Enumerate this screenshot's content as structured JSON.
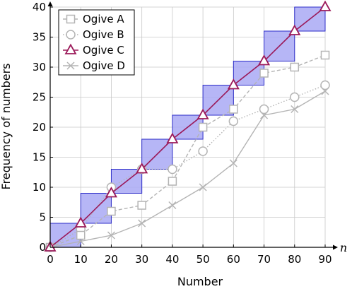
{
  "chart_data": {
    "type": "line",
    "title": "",
    "xlabel": "Number",
    "ylabel": "Frequency of numbers",
    "x_axis_symbol": "n",
    "xlim": [
      0,
      90
    ],
    "ylim": [
      0,
      40
    ],
    "x_ticks": [
      "0",
      "10",
      "20",
      "30",
      "40",
      "50",
      "60",
      "70",
      "80",
      "90"
    ],
    "y_ticks": [
      "0",
      "5",
      "10",
      "15",
      "20",
      "25",
      "30",
      "35",
      "40"
    ],
    "grid": true,
    "legend_position": "top-left",
    "step_bars": {
      "color": "#a9a9f5",
      "edge_color": "#2c2cc8",
      "steps": [
        {
          "x0": 0,
          "x1": 10,
          "y0": 0,
          "y1": 4
        },
        {
          "x0": 10,
          "x1": 20,
          "y0": 4,
          "y1": 9
        },
        {
          "x0": 20,
          "x1": 30,
          "y0": 9,
          "y1": 13
        },
        {
          "x0": 30,
          "x1": 40,
          "y0": 13,
          "y1": 18
        },
        {
          "x0": 40,
          "x1": 50,
          "y0": 18,
          "y1": 22
        },
        {
          "x0": 50,
          "x1": 60,
          "y0": 22,
          "y1": 27
        },
        {
          "x0": 60,
          "x1": 70,
          "y0": 27,
          "y1": 31
        },
        {
          "x0": 70,
          "x1": 80,
          "y0": 31,
          "y1": 36
        },
        {
          "x0": 80,
          "x1": 90,
          "y0": 36,
          "y1": 40
        }
      ]
    },
    "x": [
      0,
      10,
      20,
      30,
      40,
      50,
      60,
      70,
      80,
      90
    ],
    "series": [
      {
        "name": "Ogive A",
        "marker": "square",
        "dash": "dashed",
        "color": "#b4b4b4",
        "values": [
          0,
          2,
          6,
          7,
          11,
          20,
          23,
          29,
          30,
          32
        ]
      },
      {
        "name": "Ogive B",
        "marker": "circle",
        "dash": "dotted",
        "color": "#b4b4b4",
        "values": [
          0,
          3,
          10,
          13,
          13,
          16,
          21,
          23,
          25,
          27
        ]
      },
      {
        "name": "Ogive C",
        "marker": "triangle",
        "dash": "solid",
        "color": "#9b1a5a",
        "values": [
          0,
          4,
          9,
          13,
          18,
          22,
          27,
          31,
          36,
          40
        ]
      },
      {
        "name": "Ogive D",
        "marker": "x",
        "dash": "solid",
        "color": "#b4b4b4",
        "values": [
          0,
          1,
          2,
          4,
          7,
          10,
          14,
          22,
          23,
          26
        ]
      }
    ]
  }
}
